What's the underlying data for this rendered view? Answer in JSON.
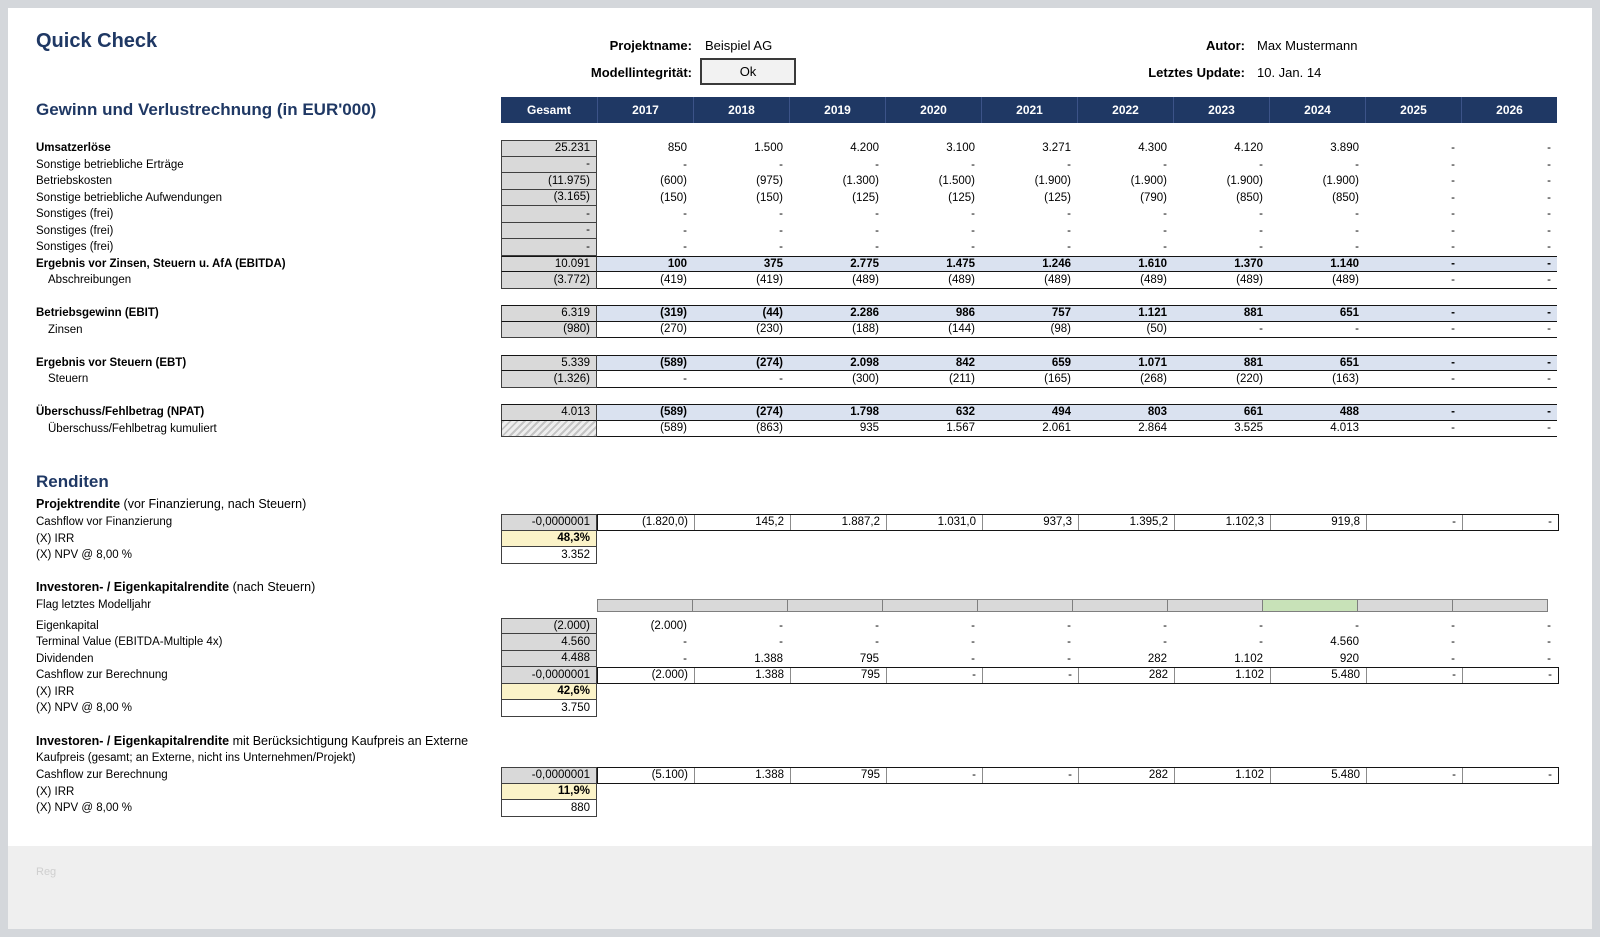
{
  "header": {
    "title": "Quick Check",
    "project_label": "Projektname:",
    "project_value": "Beispiel AG",
    "integrity_label": "Modellintegrität:",
    "integrity_value": "Ok",
    "author_label": "Autor:",
    "author_value": "Max Mustermann",
    "update_label": "Letztes Update:",
    "update_value": "10. Jan. 14"
  },
  "colors": {
    "navy": "#1f3864",
    "gesamt_fill": "#d9d9d9",
    "subtotal_fill": "#dae2f0",
    "irr_fill": "#fbf3c8",
    "flag_fill": "#d9d9d9",
    "flag_active_fill": "#c8e2b8"
  },
  "pnl": {
    "title": "Gewinn und Verlustrechnung (in EUR'000)",
    "columns": [
      "Gesamt",
      "2017",
      "2018",
      "2019",
      "2020",
      "2021",
      "2022",
      "2023",
      "2024",
      "2025",
      "2026"
    ],
    "rows": [
      {
        "name": "umsatzerloese",
        "label": "Umsatzerlöse",
        "bold": true,
        "g": "gray",
        "gfirst": true,
        "gesamt": "25.231",
        "values": [
          "850",
          "1.500",
          "4.200",
          "3.100",
          "3.271",
          "4.300",
          "4.120",
          "3.890",
          "-",
          "-"
        ]
      },
      {
        "name": "sonstige-betriebliche-ertraege",
        "label": "Sonstige betriebliche Erträge",
        "g": "gray",
        "gesamt": "-",
        "values": [
          "-",
          "-",
          "-",
          "-",
          "-",
          "-",
          "-",
          "-",
          "-",
          "-"
        ]
      },
      {
        "name": "betriebskosten",
        "label": "Betriebskosten",
        "g": "gray",
        "gesamt": "(11.975)",
        "values": [
          "(600)",
          "(975)",
          "(1.300)",
          "(1.500)",
          "(1.900)",
          "(1.900)",
          "(1.900)",
          "(1.900)",
          "-",
          "-"
        ]
      },
      {
        "name": "sonstige-betriebliche-aufwendungen",
        "label": "Sonstige betriebliche Aufwendungen",
        "g": "gray",
        "gesamt": "(3.165)",
        "values": [
          "(150)",
          "(150)",
          "(125)",
          "(125)",
          "(125)",
          "(790)",
          "(850)",
          "(850)",
          "-",
          "-"
        ]
      },
      {
        "name": "sonstiges-frei-1",
        "label": "Sonstiges (frei)",
        "g": "gray",
        "gesamt": "-",
        "values": [
          "-",
          "-",
          "-",
          "-",
          "-",
          "-",
          "-",
          "-",
          "-",
          "-"
        ]
      },
      {
        "name": "sonstiges-frei-2",
        "label": "Sonstiges (frei)",
        "g": "gray",
        "gesamt": "-",
        "values": [
          "-",
          "-",
          "-",
          "-",
          "-",
          "-",
          "-",
          "-",
          "-",
          "-"
        ]
      },
      {
        "name": "sonstiges-frei-3",
        "label": "Sonstiges (frei)",
        "g": "gray",
        "gesamt": "-",
        "values": [
          "-",
          "-",
          "-",
          "-",
          "-",
          "-",
          "-",
          "-",
          "-",
          "-"
        ]
      },
      {
        "name": "ebitda",
        "label": "Ergebnis vor Zinsen, Steuern u. AfA (EBITDA)",
        "style": "subtotal",
        "g": "gray",
        "gesamt": "10.091",
        "values": [
          "100",
          "375",
          "2.775",
          "1.475",
          "1.246",
          "1.610",
          "1.370",
          "1.140",
          "-",
          "-"
        ]
      },
      {
        "name": "abschreibungen",
        "label": "Abschreibungen",
        "indent": true,
        "style": "rule",
        "g": "gray",
        "gesamt": "(3.772)",
        "values": [
          "(419)",
          "(419)",
          "(489)",
          "(489)",
          "(489)",
          "(489)",
          "(489)",
          "(489)",
          "-",
          "-"
        ]
      },
      {
        "style": "spacer"
      },
      {
        "name": "ebit",
        "label": "Betriebsgewinn (EBIT)",
        "style": "subtotal",
        "g": "gray",
        "gfirst": true,
        "gesamt": "6.319",
        "values": [
          "(319)",
          "(44)",
          "2.286",
          "986",
          "757",
          "1.121",
          "881",
          "651",
          "-",
          "-"
        ]
      },
      {
        "name": "zinsen",
        "label": "Zinsen",
        "indent": true,
        "style": "rule",
        "g": "gray",
        "gesamt": "(980)",
        "values": [
          "(270)",
          "(230)",
          "(188)",
          "(144)",
          "(98)",
          "(50)",
          "-",
          "-",
          "-",
          "-"
        ]
      },
      {
        "style": "spacer"
      },
      {
        "name": "ebt",
        "label": "Ergebnis vor Steuern (EBT)",
        "style": "subtotal",
        "g": "gray",
        "gfirst": true,
        "gesamt": "5.339",
        "values": [
          "(589)",
          "(274)",
          "2.098",
          "842",
          "659",
          "1.071",
          "881",
          "651",
          "-",
          "-"
        ]
      },
      {
        "name": "steuern",
        "label": "Steuern",
        "indent": true,
        "style": "rule",
        "g": "gray",
        "gesamt": "(1.326)",
        "values": [
          "-",
          "-",
          "(300)",
          "(211)",
          "(165)",
          "(268)",
          "(220)",
          "(163)",
          "-",
          "-"
        ]
      },
      {
        "style": "spacer"
      },
      {
        "name": "npat",
        "label": "Überschuss/Fehlbetrag (NPAT)",
        "style": "subtotal",
        "g": "gray",
        "gfirst": true,
        "gesamt": "4.013",
        "values": [
          "(589)",
          "(274)",
          "1.798",
          "632",
          "494",
          "803",
          "661",
          "488",
          "-",
          "-"
        ]
      },
      {
        "name": "npat-kumuliert",
        "label": "Überschuss/Fehlbetrag kumuliert",
        "indent": true,
        "style": "rule",
        "g": "hatch",
        "gesamt": "",
        "values": [
          "(589)",
          "(863)",
          "935",
          "1.567",
          "2.061",
          "2.864",
          "3.525",
          "4.013",
          "-",
          "-"
        ]
      }
    ]
  },
  "renditen": {
    "title": "Renditen",
    "sections": [
      {
        "heading_bold": "Projektrendite",
        "heading_rest": " (vor Finanzierung, nach Steuern)",
        "rows": [
          {
            "name": "cashflow-vor-finanzierung",
            "label": "Cashflow vor Finanzierung",
            "style": "cashflow",
            "g": "gray",
            "gfirst": true,
            "gesamt": "-0,0000001",
            "values": [
              "(1.820,0)",
              "145,2",
              "1.887,2",
              "1.031,0",
              "937,3",
              "1.395,2",
              "1.102,3",
              "919,8",
              "-",
              "-"
            ]
          },
          {
            "name": "irr",
            "label": "(X) IRR",
            "style": "irr",
            "g": "yellow",
            "gesamt": "48,3%"
          },
          {
            "name": "npv",
            "label": "(X) NPV @  8,00 %",
            "style": "npv",
            "g": "white",
            "gesamt": "3.352"
          }
        ]
      },
      {
        "heading_bold": "Investoren- / Eigenkapitalrendite",
        "heading_rest": " (nach Steuern)",
        "rows": [
          {
            "name": "flag-letztes-modelljahr",
            "label": "Flag letztes Modelljahr",
            "style": "flag",
            "g": "none",
            "active": 7,
            "values": [
              "",
              "",
              "",
              "",
              "",
              "",
              "",
              "",
              "",
              ""
            ]
          },
          {
            "style": "spacer-sm"
          },
          {
            "name": "eigenkapital",
            "label": "Eigenkapital",
            "g": "gray",
            "gfirst": true,
            "gesamt": "(2.000)",
            "values": [
              "(2.000)",
              "-",
              "-",
              "-",
              "-",
              "-",
              "-",
              "-",
              "-",
              "-"
            ]
          },
          {
            "name": "terminal-value",
            "label": "Terminal Value (EBITDA-Multiple 4x)",
            "g": "gray",
            "gesamt": "4.560",
            "values": [
              "-",
              "-",
              "-",
              "-",
              "-",
              "-",
              "-",
              "4.560",
              "-",
              "-"
            ]
          },
          {
            "name": "dividenden",
            "label": "Dividenden",
            "g": "gray",
            "gesamt": "4.488",
            "values": [
              "-",
              "1.388",
              "795",
              "-",
              "-",
              "282",
              "1.102",
              "920",
              "-",
              "-"
            ]
          },
          {
            "name": "cashflow-zur-berechnung",
            "label": "Cashflow zur Berechnung",
            "style": "cashflow",
            "g": "gray",
            "gesamt": "-0,0000001",
            "values": [
              "(2.000)",
              "1.388",
              "795",
              "-",
              "-",
              "282",
              "1.102",
              "5.480",
              "-",
              "-"
            ]
          },
          {
            "name": "irr",
            "label": "(X) IRR",
            "style": "irr",
            "g": "yellow",
            "gesamt": "42,6%"
          },
          {
            "name": "npv",
            "label": "(X) NPV @  8,00 %",
            "style": "npv",
            "g": "white",
            "gesamt": "3.750"
          }
        ]
      },
      {
        "heading_bold": "Investoren- / Eigenkapitalrendite",
        "heading_rest": " mit Berücksichtigung Kaufpreis an Externe",
        "note": "Kaufpreis (gesamt; an Externe, nicht ins Unternehmen/Projekt)",
        "rows": [
          {
            "name": "cashflow-zur-berechnung",
            "label": "Cashflow zur Berechnung",
            "style": "cashflow",
            "g": "gray",
            "gfirst": true,
            "gesamt": "-0,0000001",
            "values": [
              "(5.100)",
              "1.388",
              "795",
              "-",
              "-",
              "282",
              "1.102",
              "5.480",
              "-",
              "-"
            ]
          },
          {
            "name": "irr",
            "label": "(X) IRR",
            "style": "irr",
            "g": "yellow",
            "gesamt": "11,9%"
          },
          {
            "name": "npv",
            "label": "(X) NPV @  8,00 %",
            "style": "npv",
            "g": "white",
            "gesamt": "880"
          }
        ]
      }
    ]
  },
  "footer": {
    "note": "Reg"
  }
}
